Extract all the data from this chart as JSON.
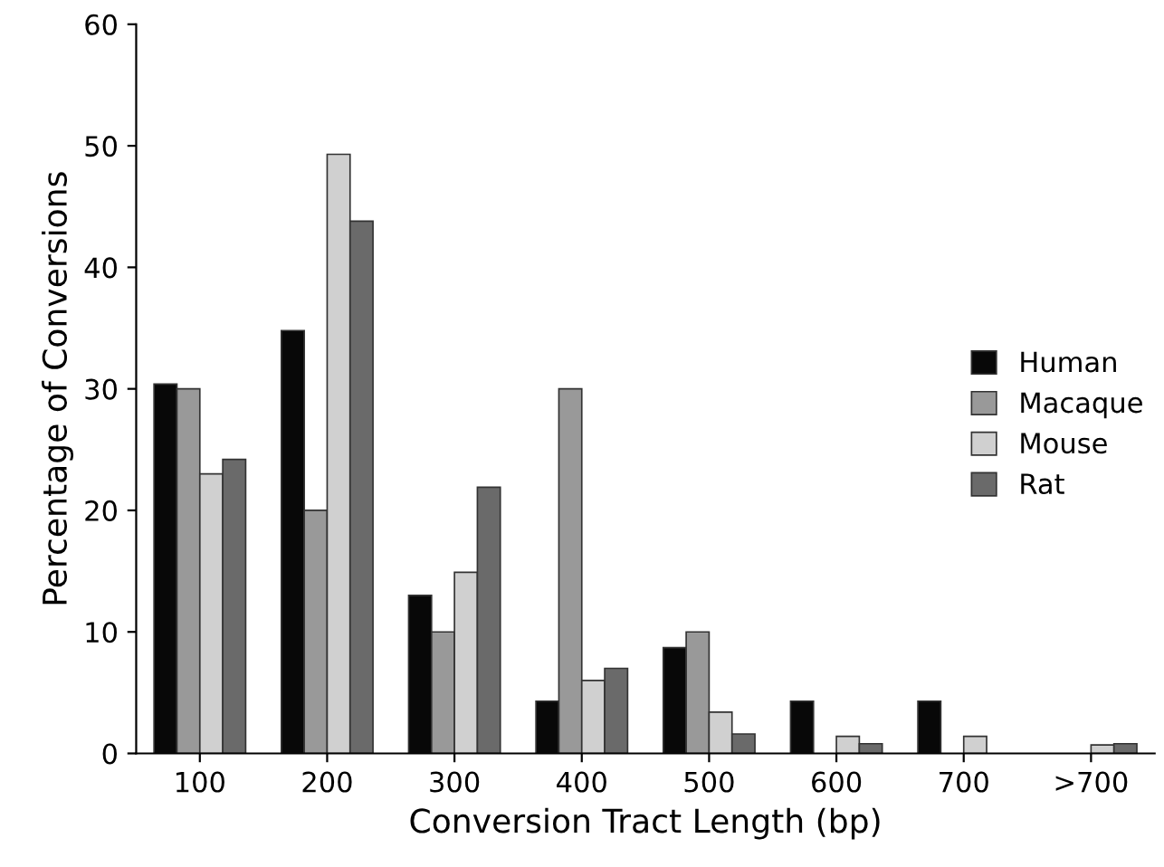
{
  "chart_data": {
    "type": "bar",
    "xlabel": "Conversion Tract Length (bp)",
    "ylabel": "Percentage of Conversions",
    "categories": [
      "100",
      "200",
      "300",
      "400",
      "500",
      "600",
      "700",
      ">700"
    ],
    "series": [
      {
        "name": "Human",
        "color": "#080808",
        "values": [
          30.4,
          34.8,
          13,
          4.3,
          8.7,
          4.3,
          4.3,
          0
        ]
      },
      {
        "name": "Macaque",
        "color": "#999999",
        "values": [
          30,
          20,
          10,
          30,
          10,
          0,
          0,
          0
        ]
      },
      {
        "name": "Mouse",
        "color": "#d0d0d0",
        "values": [
          23,
          49.3,
          14.9,
          6,
          3.4,
          1.4,
          1.4,
          0.7
        ]
      },
      {
        "name": "Rat",
        "color": "#6a6a6a",
        "values": [
          24.2,
          43.8,
          21.9,
          7,
          1.6,
          0.8,
          0,
          0.8
        ]
      }
    ],
    "ylim": [
      0,
      60
    ],
    "yticks": [
      0,
      10,
      20,
      30,
      40,
      50,
      60
    ],
    "grid": false,
    "legend": "right"
  }
}
